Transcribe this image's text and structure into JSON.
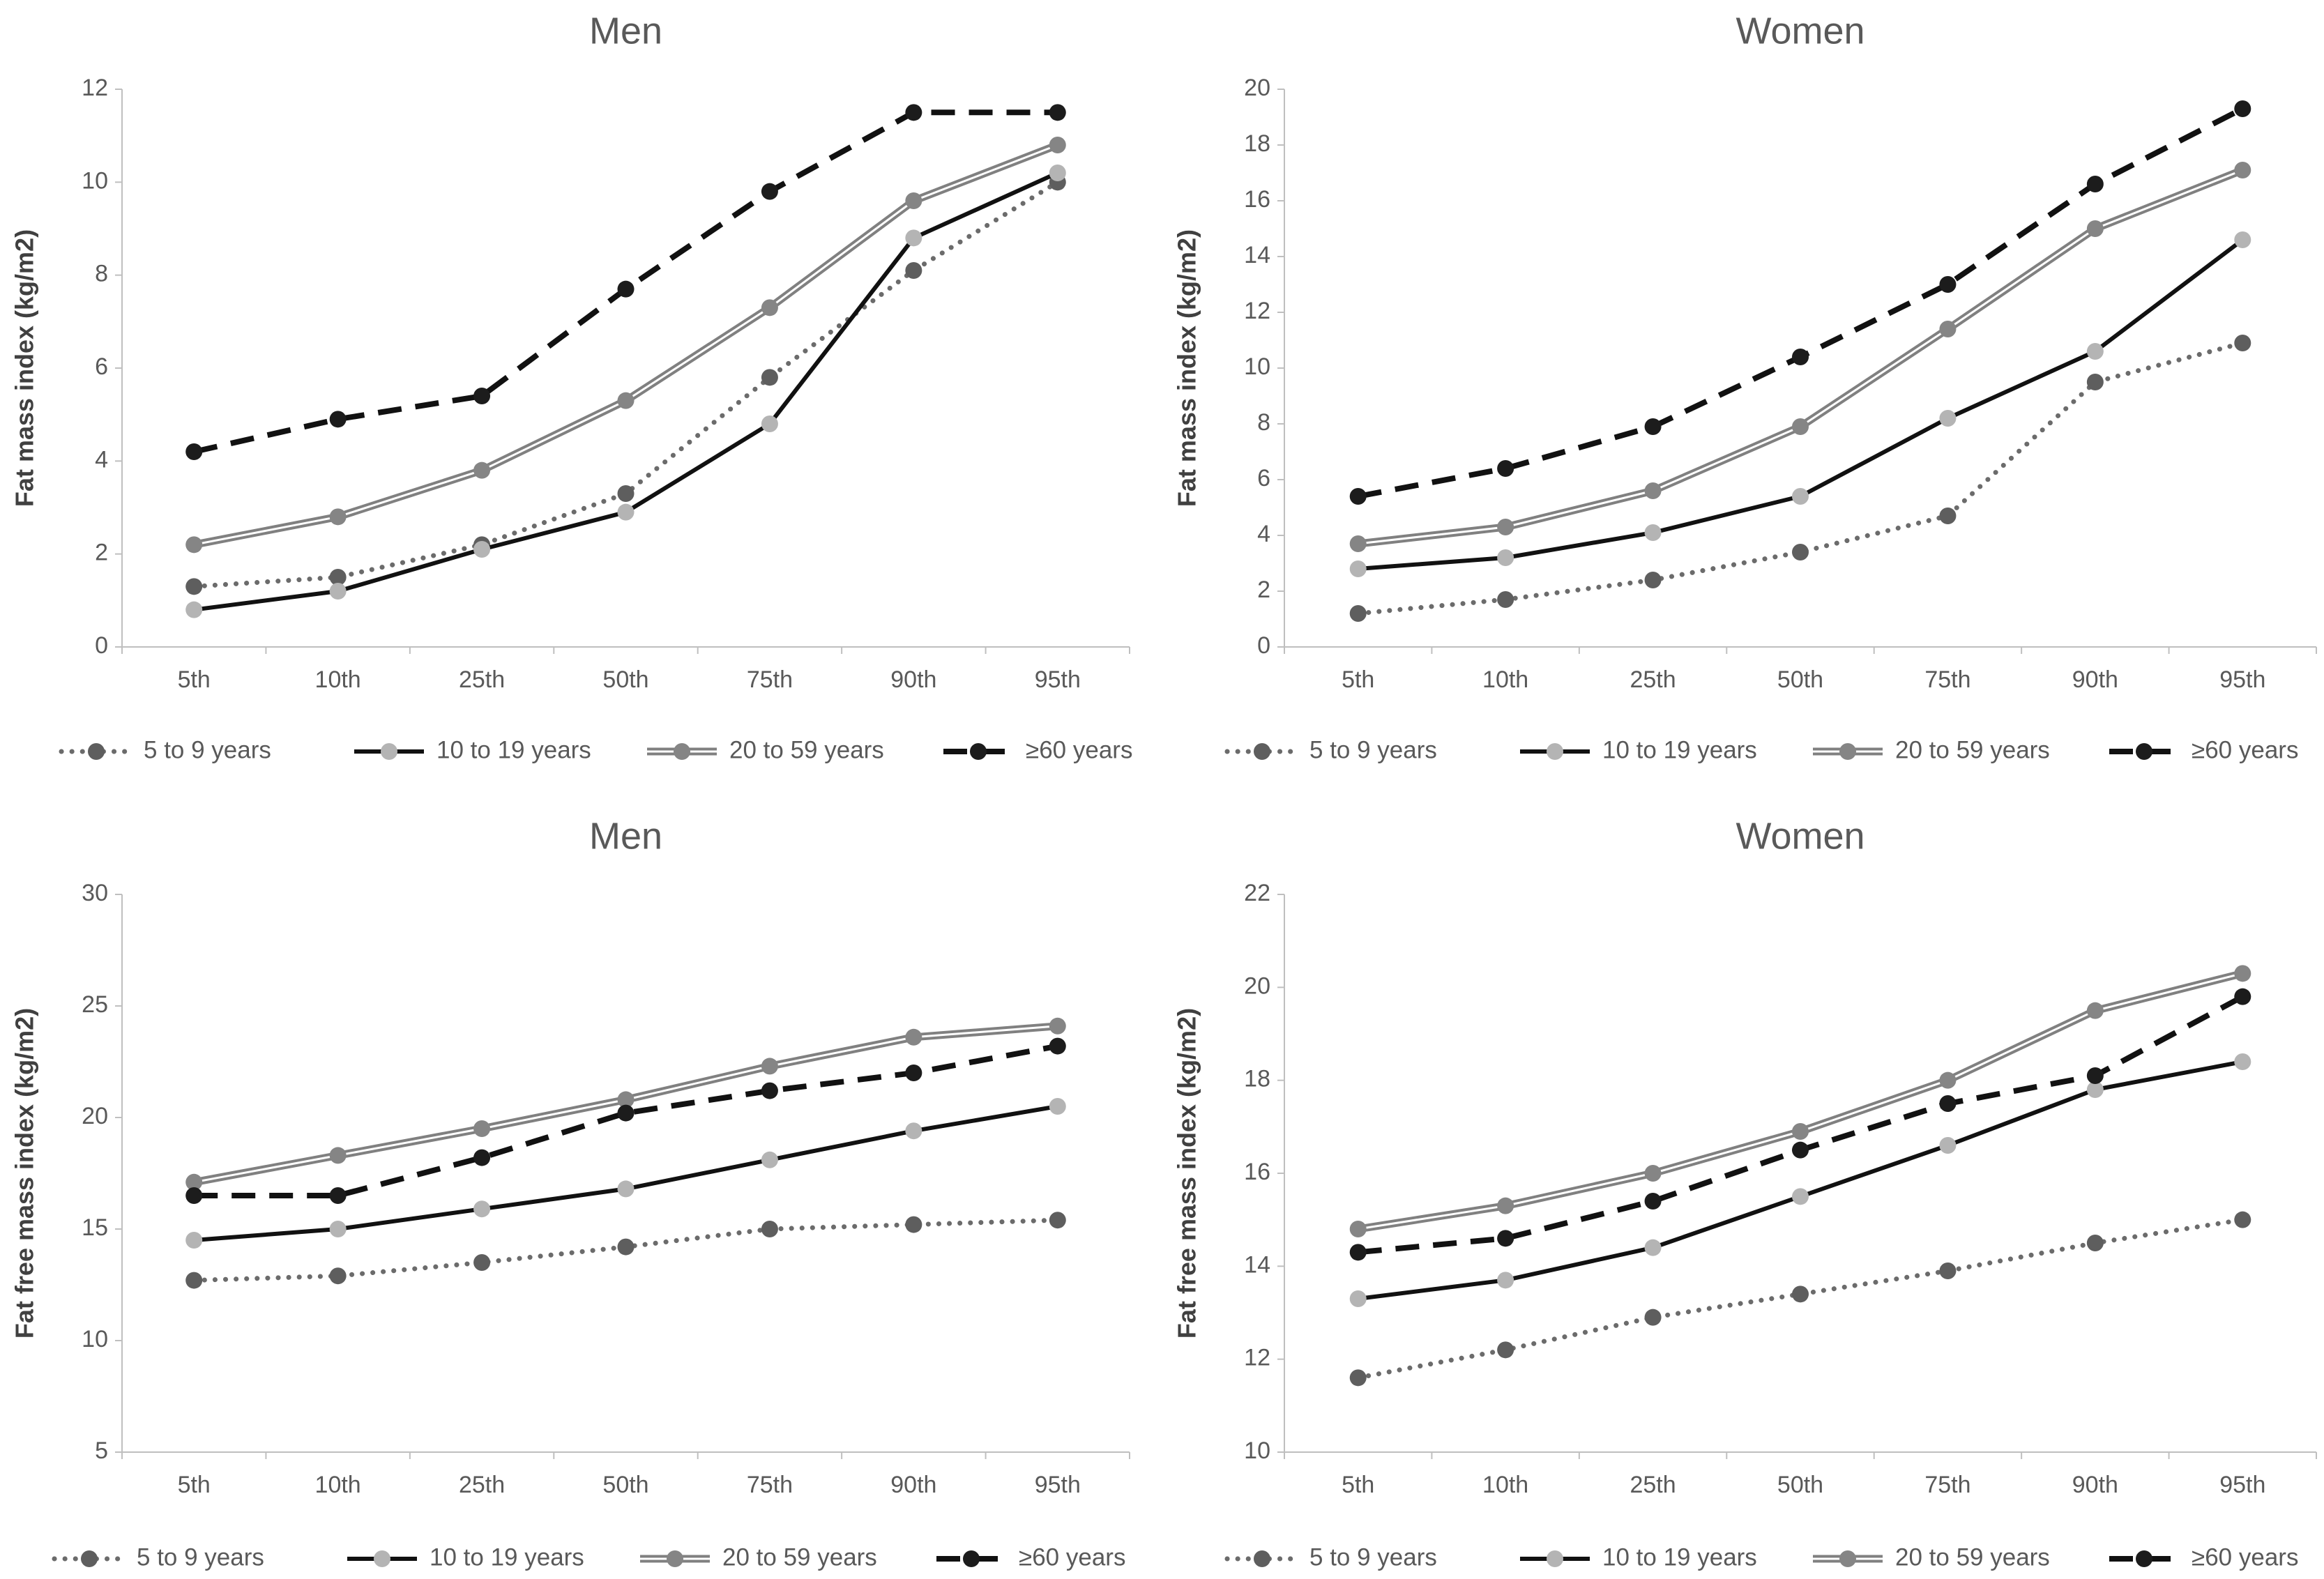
{
  "chart_data": [
    {
      "type": "line",
      "title": "Men",
      "ylabel": "Fat mass index (kg/m2)",
      "xlabel": "",
      "ylim": [
        0,
        12
      ],
      "ytick_step": 2,
      "ytick_labels": [
        "0",
        "2",
        "4",
        "6",
        "8",
        "10",
        "12"
      ],
      "categories": [
        "5th",
        "10th",
        "25th",
        "50th",
        "75th",
        "90th",
        "95th"
      ],
      "series": [
        {
          "name": "5 to 9 years",
          "values": [
            1.3,
            1.5,
            2.2,
            3.3,
            5.8,
            8.1,
            10.0
          ]
        },
        {
          "name": "10 to 19 years",
          "values": [
            0.8,
            1.2,
            2.1,
            2.9,
            4.8,
            8.8,
            10.2
          ]
        },
        {
          "name": "20 to 59 years",
          "values": [
            2.2,
            2.8,
            3.8,
            5.3,
            7.3,
            9.6,
            10.8
          ]
        },
        {
          "name": "≥60 years",
          "values": [
            4.2,
            4.9,
            5.4,
            7.7,
            9.8,
            11.5,
            11.5
          ]
        }
      ]
    },
    {
      "type": "line",
      "title": "Women",
      "ylabel": "Fat mass index (kg/m2)",
      "xlabel": "",
      "ylim": [
        0,
        20
      ],
      "ytick_step": 2,
      "ytick_labels": [
        "0",
        "2",
        "4",
        "6",
        "8",
        "10",
        "12",
        "14",
        "16",
        "18",
        "20"
      ],
      "categories": [
        "5th",
        "10th",
        "25th",
        "50th",
        "75th",
        "90th",
        "95th"
      ],
      "series": [
        {
          "name": "5 to 9 years",
          "values": [
            1.2,
            1.7,
            2.4,
            3.4,
            4.7,
            9.5,
            10.9
          ]
        },
        {
          "name": "10 to 19 years",
          "values": [
            2.8,
            3.2,
            4.1,
            5.4,
            8.2,
            10.6,
            14.6
          ]
        },
        {
          "name": "20 to 59 years",
          "values": [
            3.7,
            4.3,
            5.6,
            7.9,
            11.4,
            15.0,
            17.1
          ]
        },
        {
          "name": "≥60 years",
          "values": [
            5.4,
            6.4,
            7.9,
            10.4,
            13.0,
            16.6,
            19.3
          ]
        }
      ]
    },
    {
      "type": "line",
      "title": "Men",
      "ylabel": "Fat free mass index (kg/m2)",
      "xlabel": "",
      "ylim": [
        5,
        30
      ],
      "ytick_step": 5,
      "ytick_labels": [
        "5",
        "10",
        "15",
        "20",
        "25",
        "30"
      ],
      "categories": [
        "5th",
        "10th",
        "25th",
        "50th",
        "75th",
        "90th",
        "95th"
      ],
      "series": [
        {
          "name": "5 to 9 years",
          "values": [
            12.7,
            12.9,
            13.5,
            14.2,
            15.0,
            15.2,
            15.4
          ]
        },
        {
          "name": "10 to 19 years",
          "values": [
            14.5,
            15.0,
            15.9,
            16.8,
            18.1,
            19.4,
            20.5
          ]
        },
        {
          "name": "20 to 59 years",
          "values": [
            17.1,
            18.3,
            19.5,
            20.8,
            22.3,
            23.6,
            24.1
          ]
        },
        {
          "name": "≥60 years",
          "values": [
            16.5,
            16.5,
            18.2,
            20.2,
            21.2,
            22.0,
            23.2
          ]
        }
      ]
    },
    {
      "type": "line",
      "title": "Women",
      "ylabel": "Fat free mass index (kg/m2)",
      "xlabel": "",
      "ylim": [
        10,
        22
      ],
      "ytick_step": 2,
      "ytick_labels": [
        "10",
        "12",
        "14",
        "16",
        "18",
        "20",
        "22"
      ],
      "categories": [
        "5th",
        "10th",
        "25th",
        "50th",
        "75th",
        "90th",
        "95th"
      ],
      "series": [
        {
          "name": "5 to 9 years",
          "values": [
            11.6,
            12.2,
            12.9,
            13.4,
            13.9,
            14.5,
            15.0
          ]
        },
        {
          "name": "10 to 19 years",
          "values": [
            13.3,
            13.7,
            14.4,
            15.5,
            16.6,
            17.8,
            18.4
          ]
        },
        {
          "name": "20 to 59 years",
          "values": [
            14.8,
            15.3,
            16.0,
            16.9,
            18.0,
            19.5,
            20.3
          ]
        },
        {
          "name": "≥60 years",
          "values": [
            14.3,
            14.6,
            15.4,
            16.5,
            17.5,
            18.1,
            19.8
          ]
        }
      ]
    }
  ],
  "series_styles": [
    {
      "color": "#6b6b6b",
      "marker_color": "#5e5e5e",
      "style": "dotted"
    },
    {
      "color": "#111111",
      "marker_color": "#b4b4b4",
      "style": "solid"
    },
    {
      "color": "#808080",
      "marker_color": "#858585",
      "style": "double"
    },
    {
      "color": "#111111",
      "marker_color": "#1c1c1c",
      "style": "dashed"
    }
  ]
}
